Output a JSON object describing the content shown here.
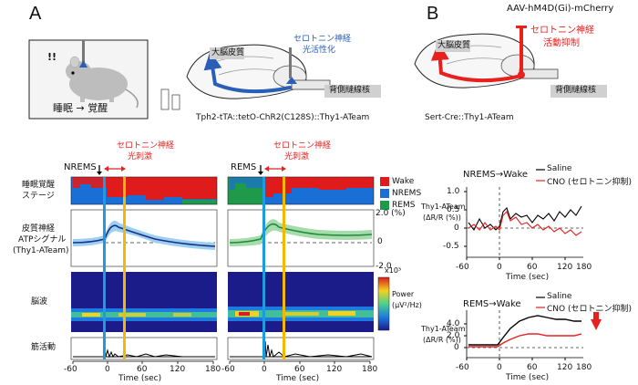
{
  "panels": {
    "a": "A",
    "b": "B"
  },
  "colors": {
    "red": "#e8201e",
    "blue": "#2a5fb8",
    "wake": "#e01b1b",
    "nrems": "#1a6fd6",
    "rems": "#1f9a4a",
    "yellow": "#f5b800",
    "cyan": "#1c9be0",
    "gray_box": "#d0d0d0",
    "green": "#2aa84a"
  },
  "panel_a": {
    "mouse_mark": "!!",
    "mouse_caption": "睡眠 → 覚醒",
    "cortex_label": "大脳皮質",
    "serotonin_label_1": "セロトニン神経",
    "serotonin_label_2": "光活性化",
    "raphe_label": "背側縫線核",
    "genotype": "Tph2-tTA::tetO-ChR2(C128S)::Thy1-ATeam",
    "stim_label_1": "セロトニン神経",
    "stim_label_2": "光刺激",
    "nrems_tag": "NREMS",
    "rems_tag": "REMS",
    "rows": [
      "睡眠覚醒",
      "ステージ",
      "皮質神経",
      "ATPシグナル",
      "(Thy1-ATeam)",
      "脳波",
      "筋活動"
    ],
    "legend": [
      "Wake",
      "NREMS",
      "REMS"
    ],
    "atp_ticks": [
      "2.0 (%)",
      "0",
      "-2.0"
    ],
    "power_exp": "x10³",
    "power_label": "Power",
    "power_unit": "(μV²/Hz)",
    "x_ticks": [
      "-60",
      "0",
      "60",
      "120",
      "180"
    ],
    "x_label": "Time (sec)"
  },
  "panel_b": {
    "virus": "AAV-hM4D(Gi)-mCherry",
    "inhibit_1": "セロトニン神経",
    "inhibit_2": "活動抑制",
    "cortex_label": "大脳皮質",
    "raphe_label": "背側縫線核",
    "genotype": "Sert-Cre::Thy1-ATeam",
    "top_title": "NREMS→Wake",
    "bottom_title": "REMS→Wake",
    "legend_saline": "Saline",
    "legend_cno": "CNO (セロトニン抑制)",
    "ylabel_1": "Thy1-ATeam",
    "ylabel_2": "(ΔR/R (%))",
    "top_yticks": [
      "1.0",
      "0.5",
      "0",
      "-0.5"
    ],
    "bottom_yticks": [
      "4.0",
      "2.0",
      "0"
    ],
    "x_ticks": [
      "-60",
      "0",
      "60",
      "120",
      "180"
    ],
    "x_label": "Time (sec)"
  }
}
